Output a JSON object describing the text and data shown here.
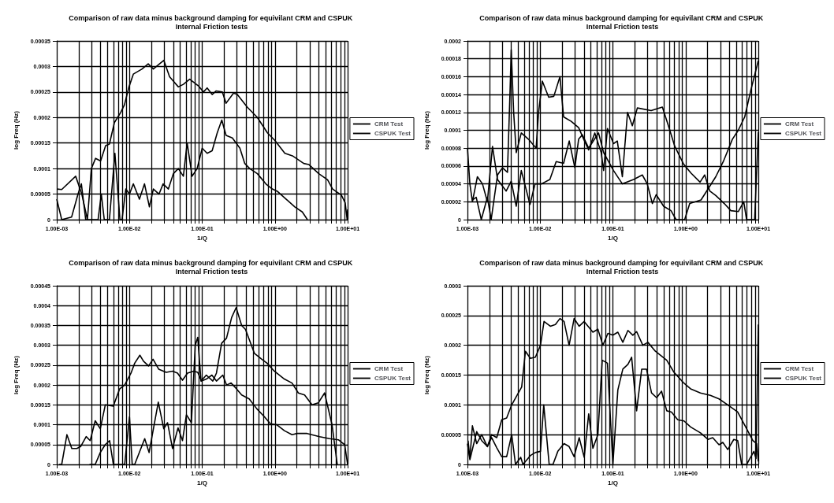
{
  "chart_data": [
    {
      "type": "line",
      "title": "Comparison of raw data minus background damping for equivilant CRM and CSPUK Internal Friction tests",
      "xlabel": "1/Q",
      "ylabel": "log Freq (Hz)",
      "log": "x",
      "grid": true,
      "legend": "right",
      "marker": "none",
      "xlim": [
        0.001,
        10
      ],
      "ylim": [
        0,
        0.00035
      ],
      "xticks": [
        {
          "value": 0.001,
          "label": "1.00E-03"
        },
        {
          "value": 0.002,
          "label": null
        },
        {
          "value": 0.003,
          "label": null
        },
        {
          "value": 0.004,
          "label": null
        },
        {
          "value": 0.005,
          "label": null
        },
        {
          "value": 0.006,
          "label": null
        },
        {
          "value": 0.007,
          "label": null
        },
        {
          "value": 0.008,
          "label": null
        },
        {
          "value": 0.009,
          "label": null
        },
        {
          "value": 0.01,
          "label": "1.00E-02"
        },
        {
          "value": 0.02,
          "label": null
        },
        {
          "value": 0.03,
          "label": null
        },
        {
          "value": 0.04,
          "label": null
        },
        {
          "value": 0.05,
          "label": null
        },
        {
          "value": 0.06,
          "label": null
        },
        {
          "value": 0.07,
          "label": null
        },
        {
          "value": 0.08,
          "label": null
        },
        {
          "value": 0.09,
          "label": null
        },
        {
          "value": 0.1,
          "label": "1.00E-01"
        },
        {
          "value": 0.2,
          "label": null
        },
        {
          "value": 0.3,
          "label": null
        },
        {
          "value": 0.4,
          "label": null
        },
        {
          "value": 0.5,
          "label": null
        },
        {
          "value": 0.6,
          "label": null
        },
        {
          "value": 0.7,
          "label": null
        },
        {
          "value": 0.8,
          "label": null
        },
        {
          "value": 0.9,
          "label": null
        },
        {
          "value": 1,
          "label": "1.00E+00"
        },
        {
          "value": 2,
          "label": null
        },
        {
          "value": 3,
          "label": null
        },
        {
          "value": 4,
          "label": null
        },
        {
          "value": 5,
          "label": null
        },
        {
          "value": 6,
          "label": null
        },
        {
          "value": 7,
          "label": null
        },
        {
          "value": 8,
          "label": null
        },
        {
          "value": 9,
          "label": null
        },
        {
          "value": 10,
          "label": "1.00E+01"
        }
      ],
      "yticks": [
        0,
        {
          "value": 5e-05,
          "label": "0.00005"
        },
        0.0001,
        0.00015,
        0.0002,
        0.00025,
        0.0003,
        0.00035
      ],
      "series": [
        {
          "name": "CRM Test",
          "color": "#000000",
          "x": [
            0.001,
            0.00117,
            0.00182,
            0.00221,
            0.00264,
            0.00299,
            0.00342,
            0.00401,
            0.0047,
            0.0053,
            0.0062,
            0.00757,
            0.00853,
            0.00984,
            0.0113,
            0.0149,
            0.0181,
            0.0213,
            0.0259,
            0.0297,
            0.0356,
            0.047,
            0.0551,
            0.0673,
            0.0887,
            0.104,
            0.117,
            0.137,
            0.155,
            0.189,
            0.213,
            0.27,
            0.304,
            0.418,
            0.574,
            0.789,
            1.0,
            1.37,
            1.74,
            2.49,
            2.92,
            4.01,
            5.3,
            6.21,
            8.2,
            9.25,
            9.85,
            10
          ],
          "values": [
            6e-05,
            5.9e-05,
            8.5e-05,
            5e-05,
            0,
            0.0001,
            0.00012,
            0.000115,
            0.000145,
            0.000148,
            0.00019,
            0.00021,
            0.000225,
            0.00026,
            0.000285,
            0.000295,
            0.000305,
            0.000295,
            0.000305,
            0.000312,
            0.00028,
            0.00026,
            0.000265,
            0.000275,
            0.000262,
            0.00025,
            0.000258,
            0.000245,
            0.000252,
            0.00025,
            0.000228,
            0.000248,
            0.000245,
            0.00022,
            0.0002,
            0.00017,
            0.000155,
            0.00013,
            0.000125,
            0.00011,
            0.000108,
            9e-05,
            7.8e-05,
            6e-05,
            4.8e-05,
            3.3e-05,
            0,
            2e-05
          ]
        },
        {
          "name": "CSPUK Test",
          "color": "#000000",
          "x": [
            0.001,
            0.00117,
            0.0016,
            0.00196,
            0.00218,
            0.0025,
            0.0037,
            0.0041,
            0.0045,
            0.0053,
            0.0063,
            0.0074,
            0.0079,
            0.0089,
            0.01,
            0.0113,
            0.0137,
            0.0161,
            0.0188,
            0.0213,
            0.0255,
            0.029,
            0.0343,
            0.0401,
            0.047,
            0.0551,
            0.0621,
            0.0727,
            0.0852,
            0.1,
            0.117,
            0.137,
            0.161,
            0.186,
            0.213,
            0.26,
            0.33,
            0.385,
            0.45,
            0.574,
            0.75,
            0.92,
            1.09,
            1.43,
            1.88,
            2.38,
            2.8
          ],
          "values": [
            4e-05,
            0,
            5e-06,
            5e-05,
            7e-05,
            0,
            0,
            5e-05,
            0,
            0,
            0.00013,
            0,
            0,
            6e-05,
            5e-05,
            7e-05,
            4e-05,
            7e-05,
            2.5e-05,
            6e-05,
            5e-05,
            7e-05,
            6e-05,
            9e-05,
            0.0001,
            8.5e-05,
            0.00015,
            8.5e-05,
            0.0001,
            0.00014,
            0.00013,
            0.000135,
            0.00017,
            0.000195,
            0.000165,
            0.00016,
            0.00014,
            0.00011,
            0.0001,
            9e-05,
            7e-05,
            6e-05,
            5.5e-05,
            4e-05,
            2.5e-05,
            1.5e-05,
            0
          ]
        }
      ]
    },
    {
      "type": "line",
      "title": "Comparison of raw data minus background damping for equivilant CRM and CSPUK Internal Friction tests",
      "xlabel": "1/Q",
      "ylabel": "log Freq (Hz)",
      "log": "x",
      "grid": true,
      "legend": "right",
      "marker": "none",
      "xlim": [
        0.001,
        10
      ],
      "ylim": [
        0,
        0.0002
      ],
      "xticks": [
        {
          "value": 0.001,
          "label": "1.00E-03"
        },
        {
          "value": 0.002,
          "label": null
        },
        {
          "value": 0.003,
          "label": null
        },
        {
          "value": 0.004,
          "label": null
        },
        {
          "value": 0.005,
          "label": null
        },
        {
          "value": 0.006,
          "label": null
        },
        {
          "value": 0.007,
          "label": null
        },
        {
          "value": 0.008,
          "label": null
        },
        {
          "value": 0.009,
          "label": null
        },
        {
          "value": 0.01,
          "label": "1.00E-02"
        },
        {
          "value": 0.02,
          "label": null
        },
        {
          "value": 0.03,
          "label": null
        },
        {
          "value": 0.04,
          "label": null
        },
        {
          "value": 0.05,
          "label": null
        },
        {
          "value": 0.06,
          "label": null
        },
        {
          "value": 0.07,
          "label": null
        },
        {
          "value": 0.08,
          "label": null
        },
        {
          "value": 0.09,
          "label": null
        },
        {
          "value": 0.1,
          "label": "1.00E-01"
        },
        {
          "value": 0.2,
          "label": null
        },
        {
          "value": 0.3,
          "label": null
        },
        {
          "value": 0.4,
          "label": null
        },
        {
          "value": 0.5,
          "label": null
        },
        {
          "value": 0.6,
          "label": null
        },
        {
          "value": 0.7,
          "label": null
        },
        {
          "value": 0.8,
          "label": null
        },
        {
          "value": 0.9,
          "label": null
        },
        {
          "value": 1,
          "label": "1.00E+00"
        },
        {
          "value": 2,
          "label": null
        },
        {
          "value": 3,
          "label": null
        },
        {
          "value": 4,
          "label": null
        },
        {
          "value": 5,
          "label": null
        },
        {
          "value": 6,
          "label": null
        },
        {
          "value": 7,
          "label": null
        },
        {
          "value": 8,
          "label": null
        },
        {
          "value": 9,
          "label": null
        },
        {
          "value": 10,
          "label": "1.00E+01"
        }
      ],
      "yticks": [
        0,
        {
          "value": 2e-05,
          "label": "0.00002"
        },
        {
          "value": 4e-05,
          "label": "0.00004"
        },
        {
          "value": 6e-05,
          "label": "0.00006"
        },
        {
          "value": 8e-05,
          "label": "0.00008"
        },
        0.0001,
        0.00012,
        0.00014,
        0.00016,
        0.00018,
        0.0002
      ],
      "series": [
        {
          "name": "CRM Test",
          "color": "#000000",
          "x": [
            0.00117,
            0.00132,
            0.00155,
            0.00188,
            0.00212,
            0.00259,
            0.00303,
            0.00355,
            0.00384,
            0.004,
            0.00432,
            0.00469,
            0.0055,
            0.0069,
            0.0088,
            0.0095,
            0.0107,
            0.0131,
            0.0154,
            0.0187,
            0.021,
            0.0267,
            0.0338,
            0.0397,
            0.0464,
            0.0564,
            0.069,
            0.0746,
            0.0842,
            0.102,
            0.115,
            0.135,
            0.159,
            0.185,
            0.217,
            0.336,
            0.479,
            0.58,
            0.71,
            0.94,
            1.19,
            1.58,
            1.83,
            2.15,
            2.6,
            3.4,
            4.2,
            5.3,
            6.3,
            6.9,
            8.9,
            10
          ],
          "values": [
            2.2e-05,
            2.5e-05,
            0,
            2.5e-05,
            0,
            5e-05,
            5.8e-05,
            5.3e-05,
            0.00014,
            0.00019,
            0.00012,
            7.5e-05,
            9.7e-05,
            9e-05,
            8e-05,
            0.00012,
            0.000155,
            0.000137,
            0.000138,
            0.00016,
            0.000115,
            0.00011,
            0.000103,
            9e-05,
            7.8e-05,
            9.7e-05,
            7.5e-05,
            5.5e-05,
            0.000102,
            8.5e-05,
            8.8e-05,
            4.8e-05,
            0.00012,
            0.000105,
            0.000125,
            0.000122,
            0.000126,
            0.000105,
            8.2e-05,
            6.2e-05,
            5.2e-05,
            4.2e-05,
            5e-05,
            3.2e-05,
            2.7e-05,
            1.8e-05,
            1e-05,
            9e-06,
            2e-05,
            0,
            0,
            9.8e-05
          ]
        },
        {
          "name": "CSPUK Test",
          "color": "#000000",
          "x": [
            0.001,
            0.00108,
            0.00117,
            0.00137,
            0.00161,
            0.00188,
            0.00221,
            0.00259,
            0.00341,
            0.004,
            0.00469,
            0.0055,
            0.00724,
            0.0085,
            0.0104,
            0.0136,
            0.0166,
            0.021,
            0.0251,
            0.03,
            0.0338,
            0.038,
            0.0464,
            0.0635,
            0.0746,
            0.102,
            0.135,
            0.193,
            0.254,
            0.297,
            0.349,
            0.394,
            0.498,
            0.63,
            0.74,
            0.97,
            1.14,
            1.63,
            2.06,
            2.6,
            3.3,
            4.4,
            5.3,
            6.5,
            7.9,
            10
          ],
          "values": [
            8e-05,
            4e-05,
            2e-05,
            4.8e-05,
            4e-05,
            2e-05,
            8.2e-05,
            4.5e-05,
            3.2e-05,
            4.3e-05,
            1.5e-05,
            5.5e-05,
            1.7e-05,
            4e-05,
            4e-05,
            4.5e-05,
            6.5e-05,
            6.3e-05,
            8.8e-05,
            5.8e-05,
            9e-05,
            9.5e-05,
            8e-05,
            9.7e-05,
            7.5e-05,
            5.5e-05,
            4e-05,
            4.5e-05,
            5e-05,
            4e-05,
            1.8e-05,
            2.8e-05,
            1.5e-05,
            1e-05,
            0,
            0,
            1.8e-05,
            2.2e-05,
            3.5e-05,
            4.8e-05,
            6.5e-05,
            9e-05,
            0.0001,
            0.000115,
            0.000145,
            0.000178
          ]
        }
      ]
    },
    {
      "type": "line",
      "title": "Comparison of raw data minus background damping for equivilant CRM and CSPUK Internal Friction tests",
      "xlabel": "1/Q",
      "ylabel": "log Freq (Hz)",
      "log": "x",
      "grid": true,
      "legend": "right",
      "marker": "none",
      "xlim": [
        0.001,
        10
      ],
      "ylim": [
        0,
        0.00045
      ],
      "xticks": [
        {
          "value": 0.001,
          "label": "1.00E-03"
        },
        {
          "value": 0.002,
          "label": null
        },
        {
          "value": 0.003,
          "label": null
        },
        {
          "value": 0.004,
          "label": null
        },
        {
          "value": 0.005,
          "label": null
        },
        {
          "value": 0.006,
          "label": null
        },
        {
          "value": 0.007,
          "label": null
        },
        {
          "value": 0.008,
          "label": null
        },
        {
          "value": 0.009,
          "label": null
        },
        {
          "value": 0.01,
          "label": "1.00E-02"
        },
        {
          "value": 0.02,
          "label": null
        },
        {
          "value": 0.03,
          "label": null
        },
        {
          "value": 0.04,
          "label": null
        },
        {
          "value": 0.05,
          "label": null
        },
        {
          "value": 0.06,
          "label": null
        },
        {
          "value": 0.07,
          "label": null
        },
        {
          "value": 0.08,
          "label": null
        },
        {
          "value": 0.09,
          "label": null
        },
        {
          "value": 0.1,
          "label": "1.00E-01"
        },
        {
          "value": 0.2,
          "label": null
        },
        {
          "value": 0.3,
          "label": null
        },
        {
          "value": 0.4,
          "label": null
        },
        {
          "value": 0.5,
          "label": null
        },
        {
          "value": 0.6,
          "label": null
        },
        {
          "value": 0.7,
          "label": null
        },
        {
          "value": 0.8,
          "label": null
        },
        {
          "value": 0.9,
          "label": null
        },
        {
          "value": 1,
          "label": "1.00E+00"
        },
        {
          "value": 2,
          "label": null
        },
        {
          "value": 3,
          "label": null
        },
        {
          "value": 4,
          "label": null
        },
        {
          "value": 5,
          "label": null
        },
        {
          "value": 6,
          "label": null
        },
        {
          "value": 7,
          "label": null
        },
        {
          "value": 8,
          "label": null
        },
        {
          "value": 9,
          "label": null
        },
        {
          "value": 10,
          "label": "1.00E+01"
        }
      ],
      "yticks": [
        0,
        {
          "value": 5e-05,
          "label": "0.00005"
        },
        0.0001,
        0.00015,
        0.0002,
        0.00025,
        0.0003,
        0.00035,
        0.0004,
        0.00045
      ],
      "series": [
        {
          "name": "CRM Test",
          "color": "#000000",
          "x": [
            0.00108,
            0.00117,
            0.00138,
            0.00161,
            0.00189,
            0.00213,
            0.00254,
            0.00288,
            0.00338,
            0.00397,
            0.00465,
            0.006,
            0.00731,
            0.00859,
            0.0105,
            0.0118,
            0.0139,
            0.0156,
            0.0183,
            0.0211,
            0.0252,
            0.032,
            0.0391,
            0.0458,
            0.0536,
            0.0628,
            0.077,
            0.0868,
            0.0978,
            0.114,
            0.136,
            0.157,
            0.192,
            0.216,
            0.25,
            0.298,
            0.349,
            0.443,
            0.565,
            0.718,
            0.87,
            1.06,
            1.35,
            1.72,
            2.02,
            2.77,
            4.11,
            5.65,
            7.46,
            9.1,
            10
          ],
          "values": [
            0,
            0,
            7.5e-05,
            4e-05,
            4e-05,
            4.5e-05,
            7e-05,
            6e-05,
            0.00011,
            9e-05,
            0.00015,
            0.000147,
            0.00019,
            0.0002,
            0.00023,
            0.000255,
            0.000275,
            0.00026,
            0.000248,
            0.000265,
            0.00024,
            0.000232,
            0.000235,
            0.00023,
            0.000212,
            0.00023,
            0.000235,
            0.000232,
            0.00021,
            0.000215,
            0.000225,
            0.00021,
            0.000225,
            0.0002,
            0.000205,
            0.00019,
            0.000175,
            0.000165,
            0.00014,
            0.00012,
            0.000102,
            0.0001,
            8.5e-05,
            7.5e-05,
            7.8e-05,
            7.8e-05,
            7e-05,
            6.5e-05,
            6.2e-05,
            5e-05,
            0
          ]
        },
        {
          "name": "CSPUK Test",
          "color": "#000000",
          "x": [
            0.00282,
            0.00338,
            0.00397,
            0.00465,
            0.00533,
            0.006,
            0.00859,
            0.01,
            0.0109,
            0.0118,
            0.0162,
            0.0186,
            0.0249,
            0.0296,
            0.0334,
            0.0391,
            0.0465,
            0.0536,
            0.0607,
            0.0711,
            0.0802,
            0.0868,
            0.0963,
            0.114,
            0.14,
            0.157,
            0.185,
            0.216,
            0.254,
            0.293,
            0.349,
            0.394,
            0.522,
            0.66,
            0.78,
            0.98,
            1.35,
            1.72,
            2.1,
            2.56,
            3.24,
            3.95,
            4.82,
            6.1,
            7.2
          ],
          "values": [
            0,
            0,
            3e-05,
            5e-05,
            6e-05,
            0,
            0,
            0.00012,
            0,
            0,
            6.5e-05,
            3e-05,
            0.000157,
            9e-05,
            0.000105,
            4e-05,
            9.2e-05,
            6e-05,
            0.000125,
            0.000105,
            0.0003,
            0.00032,
            0.00021,
            0.000225,
            0.00021,
            0.00023,
            0.000305,
            0.000318,
            0.00037,
            0.000395,
            0.00035,
            0.00034,
            0.00028,
            0.000265,
            0.000255,
            0.000235,
            0.000215,
            0.000205,
            0.00018,
            0.000175,
            0.00015,
            0.000155,
            0.00018,
            0.0001,
            0
          ]
        }
      ]
    },
    {
      "type": "line",
      "title": "Comparison of raw data minus background damping for equivilant CRM and CSPUK Internal Friction tests",
      "xlabel": "1/Q",
      "ylabel": "log Freq (Hz)",
      "log": "x",
      "grid": true,
      "legend": "right",
      "marker": "none",
      "xlim": [
        0.001,
        10
      ],
      "ylim": [
        0,
        0.0003
      ],
      "xticks": [
        {
          "value": 0.001,
          "label": "1.00E-03"
        },
        {
          "value": 0.002,
          "label": null
        },
        {
          "value": 0.003,
          "label": null
        },
        {
          "value": 0.004,
          "label": null
        },
        {
          "value": 0.005,
          "label": null
        },
        {
          "value": 0.006,
          "label": null
        },
        {
          "value": 0.007,
          "label": null
        },
        {
          "value": 0.008,
          "label": null
        },
        {
          "value": 0.009,
          "label": null
        },
        {
          "value": 0.01,
          "label": "1.00E-02"
        },
        {
          "value": 0.02,
          "label": null
        },
        {
          "value": 0.03,
          "label": null
        },
        {
          "value": 0.04,
          "label": null
        },
        {
          "value": 0.05,
          "label": null
        },
        {
          "value": 0.06,
          "label": null
        },
        {
          "value": 0.07,
          "label": null
        },
        {
          "value": 0.08,
          "label": null
        },
        {
          "value": 0.09,
          "label": null
        },
        {
          "value": 0.1,
          "label": "1.00E-01"
        },
        {
          "value": 0.2,
          "label": null
        },
        {
          "value": 0.3,
          "label": null
        },
        {
          "value": 0.4,
          "label": null
        },
        {
          "value": 0.5,
          "label": null
        },
        {
          "value": 0.6,
          "label": null
        },
        {
          "value": 0.7,
          "label": null
        },
        {
          "value": 0.8,
          "label": null
        },
        {
          "value": 0.9,
          "label": null
        },
        {
          "value": 1,
          "label": "1.00E+00"
        },
        {
          "value": 2,
          "label": null
        },
        {
          "value": 3,
          "label": null
        },
        {
          "value": 4,
          "label": null
        },
        {
          "value": 5,
          "label": null
        },
        {
          "value": 6,
          "label": null
        },
        {
          "value": 7,
          "label": null
        },
        {
          "value": 8,
          "label": null
        },
        {
          "value": 9,
          "label": null
        },
        {
          "value": 10,
          "label": "1.00E+01"
        }
      ],
      "yticks": [
        0,
        {
          "value": 5e-05,
          "label": "0.00005"
        },
        0.0001,
        0.00015,
        0.0002,
        0.00025,
        0.0003
      ],
      "series": [
        {
          "name": "CRM Test",
          "color": "#000000",
          "x": [
            0.00102,
            0.00108,
            0.00117,
            0.00134,
            0.00157,
            0.00188,
            0.00215,
            0.00253,
            0.00296,
            0.00346,
            0.00406,
            0.00476,
            0.00557,
            0.00627,
            0.00734,
            0.0086,
            0.0101,
            0.0113,
            0.0138,
            0.0162,
            0.0187,
            0.0213,
            0.025,
            0.0293,
            0.0344,
            0.0403,
            0.0531,
            0.0622,
            0.0729,
            0.0854,
            0.1,
            0.117,
            0.137,
            0.161,
            0.188,
            0.212,
            0.258,
            0.303,
            0.384,
            0.467,
            0.55,
            0.69,
            0.92,
            1.17,
            1.6,
            2.19,
            2.88,
            3.8,
            5.2,
            6.9,
            8.4,
            9.5,
            10
          ],
          "values": [
            4e-05,
            1e-05,
            6.5e-05,
            3.5e-05,
            5e-05,
            3e-05,
            5e-05,
            4.5e-05,
            7.5e-05,
            7.8e-05,
            0.0001,
            0.000115,
            0.00013,
            0.00019,
            0.000178,
            0.00018,
            0.0002,
            0.00024,
            0.000232,
            0.000235,
            0.000245,
            0.00024,
            0.0002,
            0.000245,
            0.000232,
            0.00024,
            0.000222,
            0.000227,
            0.0002,
            0.00022,
            0.000217,
            0.000222,
            0.000205,
            0.000225,
            0.000217,
            0.000223,
            0.0002,
            0.000205,
            0.00019,
            0.000182,
            0.000175,
            0.000155,
            0.000138,
            0.000127,
            0.00012,
            0.000116,
            0.00011,
            0.0001,
            8.8e-05,
            6e-05,
            4e-05,
            3.5e-05,
            5e-06
          ]
        },
        {
          "name": "CSPUK Test",
          "color": "#000000",
          "x": [
            0.001,
            0.00108,
            0.00134,
            0.00157,
            0.00188,
            0.00215,
            0.00253,
            0.00296,
            0.00346,
            0.00406,
            0.00458,
            0.0054,
            0.0058,
            0.00734,
            0.0086,
            0.0101,
            0.0112,
            0.0133,
            0.015,
            0.0175,
            0.0213,
            0.025,
            0.0293,
            0.0344,
            0.0403,
            0.0465,
            0.0531,
            0.0622,
            0.0713,
            0.0842,
            0.1,
            0.117,
            0.137,
            0.161,
            0.181,
            0.212,
            0.249,
            0.29,
            0.34,
            0.4,
            0.467,
            0.55,
            0.64,
            0.78,
            0.95,
            1.17,
            1.6,
            2.03,
            2.36,
            2.88,
            3.25,
            3.8,
            4.6,
            5.2,
            5.9,
            6.9,
            8.7,
            9.3,
            10
          ],
          "values": [
            3.5e-05,
            8e-06,
            5.5e-05,
            4e-05,
            3e-05,
            4.5e-05,
            2.8e-05,
            1.3e-05,
            1.3e-05,
            5e-05,
            0,
            1.2e-05,
            0,
            1.5e-05,
            2e-05,
            2.2e-05,
            0.0001,
            0,
            0,
            2.2e-05,
            3.5e-05,
            3e-05,
            1.3e-05,
            4.5e-05,
            1.2e-05,
            8.5e-05,
            2.7e-05,
            5e-05,
            0.000175,
            0.00017,
            0,
            0.000125,
            0.00016,
            0.000168,
            0.00018,
            9e-05,
            0.00016,
            0.00016,
            0.00012,
            0.000112,
            0.000123,
            9e-05,
            8.8e-05,
            7.5e-05,
            7.3e-05,
            6.3e-05,
            5.3e-05,
            4.2e-05,
            4.5e-05,
            3.3e-05,
            3.7e-05,
            2.5e-05,
            4.2e-05,
            4e-05,
            0,
            0,
            2.2e-05,
            1e-05,
            0.000235
          ]
        }
      ]
    }
  ]
}
